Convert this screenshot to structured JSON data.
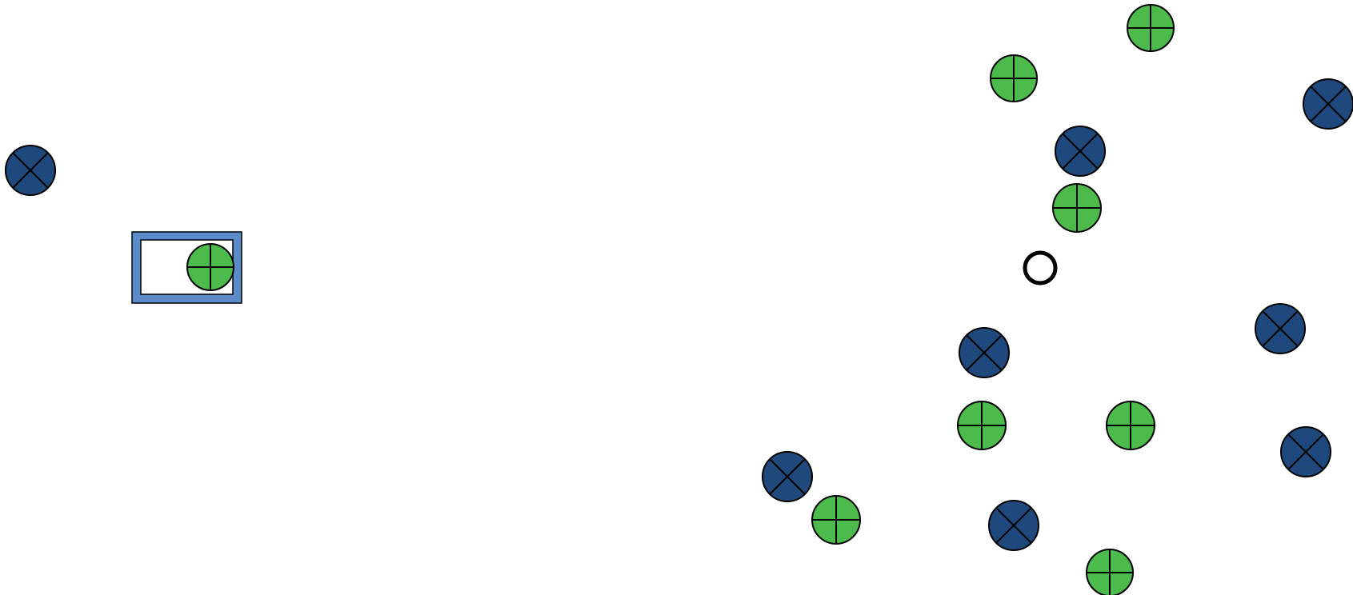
{
  "game": {
    "colors": {
      "background": "#ffffff",
      "plus_fill": "#4cbb4c",
      "x_fill": "#1f497d",
      "outline": "#000000",
      "target_border": "#5b8bc9",
      "target_inner": "#ffffff",
      "cursor_ring": "#000000"
    },
    "icons": {
      "plus": "plus-circle-icon",
      "x": "x-circle-icon",
      "cursor": "cursor-ring-icon",
      "target": "target-box"
    }
  }
}
